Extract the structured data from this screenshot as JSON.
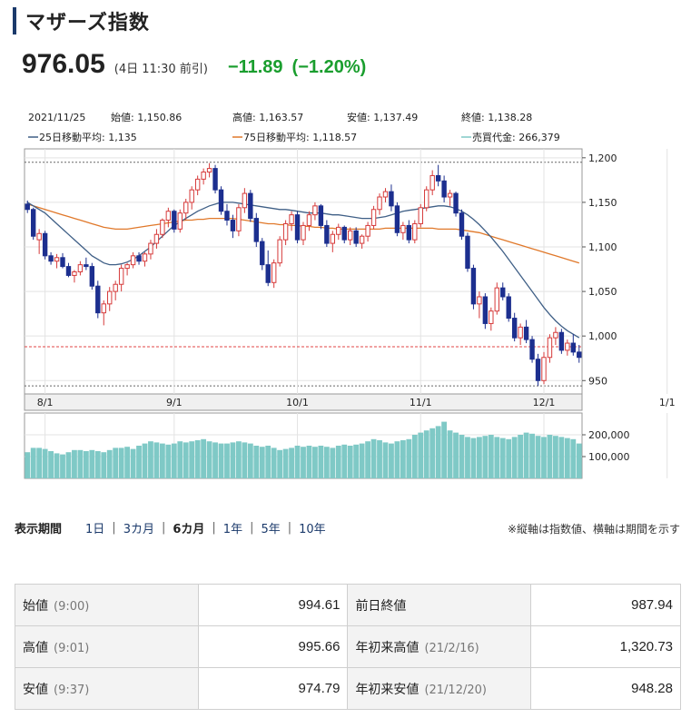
{
  "title": "マザーズ指数",
  "price": {
    "value": "976.05",
    "note": "(4日 11:30 前引)",
    "change": "−11.89",
    "change_pct": "(−1.20%)"
  },
  "info": {
    "date": "2021/11/25",
    "open": "始値: 1,150.86",
    "high": "高値: 1,163.57",
    "low": "安値: 1,137.49",
    "close": "終値: 1,138.28",
    "ma25": "25日移動平均: 1,135",
    "ma75": "75日移動平均: 1,118.57",
    "volume": "売買代金: 266,379"
  },
  "colors": {
    "accent": "#1b3a6b",
    "down": "#1a9e2e",
    "candle_up": "#d63a3a",
    "candle_down": "#1c2f8f",
    "ma25": "#3f5f86",
    "ma75": "#e0782a",
    "volume": "#7fc9c6",
    "ref_line": "#e04444"
  },
  "chart_data": [
    {
      "type": "candlestick",
      "ylim": [
        935,
        1210
      ],
      "y_ticks": [
        950,
        1000,
        1050,
        1100,
        1150,
        1200
      ],
      "y_tick_labels": [
        "950",
        "1,000",
        "1,050",
        "1,100",
        "1,150",
        "1,200"
      ],
      "x_labels": [
        "8/1",
        "9/1",
        "10/1",
        "11/1",
        "12/1",
        "1/1"
      ],
      "x_label_positions": [
        3,
        25,
        46,
        67,
        88,
        109
      ],
      "reference_line": 987.94,
      "upper_band": 1195,
      "lower_band": 944,
      "ohlc": [
        [
          1148,
          1152,
          1138,
          1142
        ],
        [
          1142,
          1144,
          1108,
          1112
        ],
        [
          1108,
          1120,
          1092,
          1115
        ],
        [
          1115,
          1118,
          1086,
          1090
        ],
        [
          1090,
          1094,
          1080,
          1084
        ],
        [
          1084,
          1092,
          1076,
          1088
        ],
        [
          1088,
          1093,
          1076,
          1078
        ],
        [
          1078,
          1082,
          1066,
          1068
        ],
        [
          1068,
          1074,
          1060,
          1072
        ],
        [
          1072,
          1084,
          1068,
          1080
        ],
        [
          1080,
          1088,
          1074,
          1078
        ],
        [
          1078,
          1082,
          1052,
          1056
        ],
        [
          1056,
          1062,
          1020,
          1026
        ],
        [
          1026,
          1040,
          1012,
          1036
        ],
        [
          1036,
          1055,
          1028,
          1050
        ],
        [
          1050,
          1062,
          1040,
          1058
        ],
        [
          1058,
          1080,
          1050,
          1076
        ],
        [
          1076,
          1082,
          1068,
          1080
        ],
        [
          1080,
          1094,
          1076,
          1090
        ],
        [
          1090,
          1094,
          1080,
          1084
        ],
        [
          1084,
          1094,
          1078,
          1092
        ],
        [
          1092,
          1108,
          1086,
          1104
        ],
        [
          1104,
          1120,
          1098,
          1114
        ],
        [
          1114,
          1132,
          1110,
          1130
        ],
        [
          1130,
          1144,
          1122,
          1140
        ],
        [
          1140,
          1142,
          1116,
          1120
        ],
        [
          1120,
          1142,
          1116,
          1138
        ],
        [
          1138,
          1154,
          1130,
          1150
        ],
        [
          1150,
          1168,
          1142,
          1164
        ],
        [
          1164,
          1180,
          1158,
          1176
        ],
        [
          1176,
          1188,
          1170,
          1184
        ],
        [
          1184,
          1194,
          1178,
          1188
        ],
        [
          1188,
          1192,
          1160,
          1164
        ],
        [
          1164,
          1168,
          1136,
          1140
        ],
        [
          1140,
          1148,
          1124,
          1130
        ],
        [
          1130,
          1136,
          1110,
          1118
        ],
        [
          1118,
          1148,
          1112,
          1144
        ],
        [
          1144,
          1166,
          1138,
          1160
        ],
        [
          1160,
          1164,
          1128,
          1132
        ],
        [
          1132,
          1138,
          1100,
          1106
        ],
        [
          1106,
          1110,
          1074,
          1080
        ],
        [
          1080,
          1096,
          1056,
          1060
        ],
        [
          1060,
          1086,
          1054,
          1082
        ],
        [
          1082,
          1112,
          1078,
          1108
        ],
        [
          1108,
          1130,
          1102,
          1126
        ],
        [
          1126,
          1140,
          1118,
          1136
        ],
        [
          1136,
          1140,
          1104,
          1108
        ],
        [
          1108,
          1128,
          1102,
          1124
        ],
        [
          1124,
          1140,
          1118,
          1136
        ],
        [
          1136,
          1150,
          1130,
          1146
        ],
        [
          1146,
          1148,
          1120,
          1124
        ],
        [
          1124,
          1130,
          1100,
          1104
        ],
        [
          1104,
          1118,
          1094,
          1114
        ],
        [
          1114,
          1126,
          1108,
          1122
        ],
        [
          1122,
          1124,
          1104,
          1108
        ],
        [
          1108,
          1122,
          1102,
          1118
        ],
        [
          1118,
          1122,
          1100,
          1104
        ],
        [
          1104,
          1114,
          1098,
          1112
        ],
        [
          1112,
          1128,
          1106,
          1124
        ],
        [
          1124,
          1146,
          1120,
          1142
        ],
        [
          1142,
          1160,
          1136,
          1156
        ],
        [
          1156,
          1166,
          1150,
          1162
        ],
        [
          1162,
          1170,
          1140,
          1146
        ],
        [
          1146,
          1150,
          1112,
          1116
        ],
        [
          1116,
          1128,
          1108,
          1124
        ],
        [
          1124,
          1130,
          1104,
          1108
        ],
        [
          1108,
          1130,
          1104,
          1126
        ],
        [
          1126,
          1148,
          1122,
          1144
        ],
        [
          1144,
          1168,
          1140,
          1164
        ],
        [
          1164,
          1186,
          1158,
          1180
        ],
        [
          1180,
          1192,
          1168,
          1174
        ],
        [
          1174,
          1180,
          1150,
          1156
        ],
        [
          1156,
          1164,
          1146,
          1160
        ],
        [
          1160,
          1162,
          1134,
          1138
        ],
        [
          1138,
          1142,
          1108,
          1112
        ],
        [
          1112,
          1116,
          1072,
          1076
        ],
        [
          1076,
          1080,
          1030,
          1036
        ],
        [
          1036,
          1050,
          1020,
          1044
        ],
        [
          1044,
          1048,
          1008,
          1014
        ],
        [
          1014,
          1032,
          1006,
          1028
        ],
        [
          1028,
          1060,
          1024,
          1054
        ],
        [
          1054,
          1060,
          1040,
          1044
        ],
        [
          1044,
          1048,
          1016,
          1020
        ],
        [
          1020,
          1026,
          994,
          998
        ],
        [
          998,
          1014,
          990,
          1010
        ],
        [
          1010,
          1018,
          992,
          996
        ],
        [
          996,
          1000,
          970,
          974
        ],
        [
          974,
          980,
          944,
          950
        ],
        [
          950,
          982,
          946,
          976
        ],
        [
          976,
          1002,
          970,
          998
        ],
        [
          998,
          1010,
          990,
          1004
        ],
        [
          1004,
          1008,
          980,
          984
        ],
        [
          984,
          996,
          978,
          992
        ],
        [
          992,
          1002,
          978,
          982
        ],
        [
          982,
          990,
          970,
          976
        ]
      ],
      "ma25": [
        1150,
        1146,
        1142,
        1138,
        1132,
        1126,
        1120,
        1114,
        1108,
        1102,
        1096,
        1090,
        1086,
        1082,
        1080,
        1080,
        1081,
        1083,
        1086,
        1090,
        1095,
        1100,
        1106,
        1112,
        1118,
        1124,
        1128,
        1132,
        1136,
        1140,
        1143,
        1146,
        1148,
        1150,
        1150,
        1150,
        1149,
        1148,
        1147,
        1146,
        1145,
        1144,
        1143,
        1142,
        1142,
        1141,
        1140,
        1139,
        1138,
        1138,
        1138,
        1137,
        1136,
        1136,
        1135,
        1134,
        1133,
        1132,
        1132,
        1132,
        1133,
        1134,
        1136,
        1138,
        1140,
        1141,
        1142,
        1143,
        1144,
        1145,
        1146,
        1146,
        1145,
        1143,
        1140,
        1136,
        1131,
        1125,
        1118,
        1111,
        1103,
        1095,
        1086,
        1077,
        1068,
        1059,
        1050,
        1041,
        1032,
        1024,
        1017,
        1011,
        1006,
        1002,
        998
      ],
      "ma75": [
        1148,
        1146,
        1144,
        1142,
        1140,
        1138,
        1136,
        1134,
        1132,
        1130,
        1128,
        1126,
        1124,
        1122,
        1121,
        1120,
        1120,
        1120,
        1121,
        1122,
        1123,
        1124,
        1125,
        1126,
        1127,
        1128,
        1129,
        1130,
        1130,
        1131,
        1131,
        1132,
        1132,
        1132,
        1132,
        1132,
        1131,
        1130,
        1129,
        1128,
        1127,
        1126,
        1126,
        1125,
        1125,
        1124,
        1124,
        1123,
        1123,
        1122,
        1122,
        1121,
        1121,
        1120,
        1120,
        1120,
        1120,
        1120,
        1120,
        1120,
        1120,
        1121,
        1121,
        1121,
        1121,
        1121,
        1121,
        1121,
        1121,
        1121,
        1120,
        1120,
        1120,
        1120,
        1119,
        1118,
        1117,
        1116,
        1114,
        1112,
        1110,
        1108,
        1106,
        1104,
        1102,
        1100,
        1098,
        1096,
        1094,
        1092,
        1090,
        1088,
        1086,
        1084,
        1082
      ]
    },
    {
      "type": "bar",
      "ylim": [
        0,
        300000
      ],
      "y_ticks": [
        100000,
        200000
      ],
      "y_tick_labels": [
        "100,000",
        "200,000"
      ],
      "values": [
        120000,
        140000,
        140000,
        135000,
        125000,
        115000,
        110000,
        120000,
        130000,
        130000,
        125000,
        130000,
        125000,
        120000,
        130000,
        140000,
        140000,
        145000,
        135000,
        150000,
        160000,
        170000,
        165000,
        160000,
        155000,
        160000,
        170000,
        165000,
        170000,
        175000,
        180000,
        170000,
        165000,
        160000,
        160000,
        165000,
        170000,
        165000,
        160000,
        150000,
        145000,
        150000,
        140000,
        130000,
        135000,
        140000,
        150000,
        145000,
        150000,
        145000,
        150000,
        145000,
        140000,
        150000,
        155000,
        150000,
        155000,
        160000,
        170000,
        180000,
        175000,
        165000,
        160000,
        170000,
        175000,
        180000,
        200000,
        210000,
        220000,
        230000,
        240000,
        260000,
        220000,
        210000,
        200000,
        190000,
        185000,
        190000,
        195000,
        200000,
        190000,
        185000,
        180000,
        190000,
        200000,
        210000,
        205000,
        195000,
        190000,
        200000,
        195000,
        190000,
        185000,
        180000,
        160000
      ]
    }
  ],
  "period": {
    "label": "表示期間",
    "items": [
      "1日",
      "3カ月",
      "6カ月",
      "1年",
      "5年",
      "10年"
    ],
    "active_index": 2,
    "note": "※縦軸は指数値、横軸は期間を示す"
  },
  "stats": [
    {
      "label": "始値",
      "time": "(9:00)",
      "value": "994.61",
      "label2": "前日終値",
      "time2": "",
      "value2": "987.94"
    },
    {
      "label": "高値",
      "time": "(9:01)",
      "value": "995.66",
      "label2": "年初来高値",
      "time2": "(21/2/16)",
      "value2": "1,320.73"
    },
    {
      "label": "安値",
      "time": "(9:37)",
      "value": "974.79",
      "label2": "年初来安値",
      "time2": "(21/12/20)",
      "value2": "948.28"
    }
  ]
}
